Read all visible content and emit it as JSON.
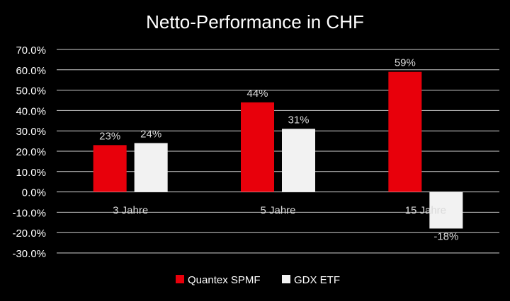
{
  "chart_data": {
    "type": "bar",
    "title": "Netto-Performance in CHF",
    "categories": [
      "3 Jahre",
      "5 Jahre",
      "15 Jahre"
    ],
    "series": [
      {
        "name": "Quantex SPMF",
        "values": [
          23,
          44,
          59
        ],
        "labels": [
          "23%",
          "44%",
          "59%"
        ],
        "color": "#e8000b"
      },
      {
        "name": "GDX ETF",
        "values": [
          24,
          31,
          -18
        ],
        "labels": [
          "24%",
          "31%",
          "-18%"
        ],
        "color": "#f2f2f2"
      }
    ],
    "ylim": [
      -30,
      70
    ],
    "yticks": [
      "-30.0%",
      "-20.0%",
      "-10.0%",
      "0.0%",
      "10.0%",
      "20.0%",
      "30.0%",
      "40.0%",
      "50.0%",
      "60.0%",
      "70.0%"
    ],
    "ytick_values": [
      -30,
      -20,
      -10,
      0,
      10,
      20,
      30,
      40,
      50,
      60,
      70
    ],
    "grid": true,
    "legend": "bottom",
    "background": "#000000",
    "text_color": "#ffffff",
    "label_color": "#d9d9d9"
  }
}
